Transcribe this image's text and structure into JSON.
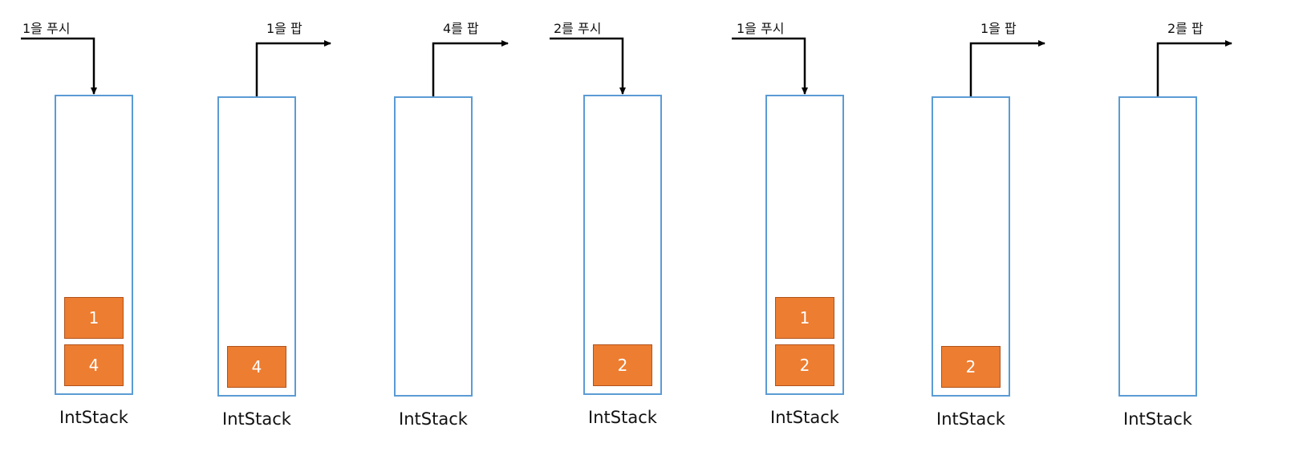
{
  "stacks": [
    {
      "operation": "1을 푸시",
      "kind": "push",
      "items": [
        "1",
        "4"
      ],
      "label": "IntStack"
    },
    {
      "operation": "1을 팝",
      "kind": "pop",
      "items": [
        "4"
      ],
      "label": "IntStack"
    },
    {
      "operation": "4를 팝",
      "kind": "pop",
      "items": [],
      "label": "IntStack"
    },
    {
      "operation": "2를 푸시",
      "kind": "push",
      "items": [
        "2"
      ],
      "label": "IntStack"
    },
    {
      "operation": "1을 푸시",
      "kind": "push",
      "items": [
        "1",
        "2"
      ],
      "label": "IntStack"
    },
    {
      "operation": "1을 팝",
      "kind": "pop",
      "items": [
        "2"
      ],
      "label": "IntStack"
    },
    {
      "operation": "2를 팝",
      "kind": "pop",
      "items": [],
      "label": "IntStack"
    }
  ],
  "colors": {
    "stack_border": "#5b9bd5",
    "block_fill": "#ed7d31",
    "block_border": "#b0531c",
    "arrow": "#000000"
  }
}
